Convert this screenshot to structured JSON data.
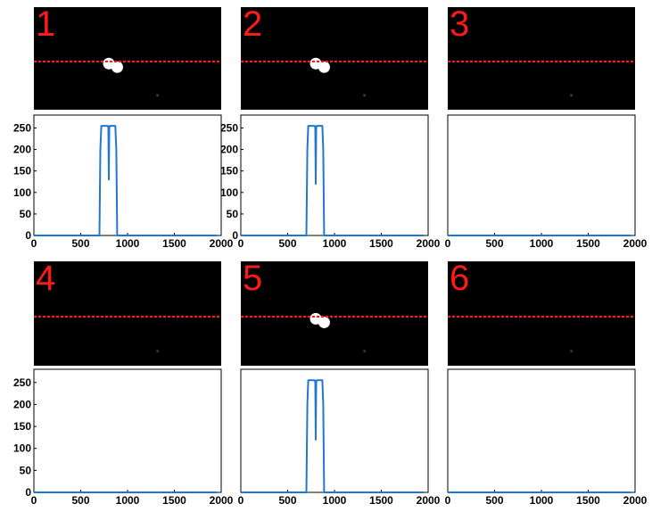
{
  "colors": {
    "camera_background": "#000000",
    "scanline": "#ff1a1a",
    "panel_number": "#ff1a1a",
    "trace": "#1f77d4",
    "axes": "#000000"
  },
  "panels": [
    {
      "number": "1",
      "has_spheres": true
    },
    {
      "number": "2",
      "has_spheres": true
    },
    {
      "number": "3",
      "has_spheres": false
    },
    {
      "number": "4",
      "has_spheres": false
    },
    {
      "number": "5",
      "has_spheres": true
    },
    {
      "number": "6",
      "has_spheres": false
    }
  ],
  "chart_data": [
    {
      "type": "line",
      "title": "",
      "xlabel": "",
      "ylabel": "",
      "xlim": [
        0,
        2000
      ],
      "ylim": [
        0,
        280
      ],
      "xticks": [
        0,
        500,
        1000,
        1500,
        2000
      ],
      "yticks": [
        0,
        50,
        100,
        150,
        200,
        250
      ],
      "grid": false,
      "x": [
        0,
        700,
        710,
        720,
        790,
        795,
        800,
        805,
        810,
        870,
        880,
        890,
        1950
      ],
      "y": [
        0,
        0,
        200,
        255,
        255,
        250,
        130,
        250,
        255,
        255,
        200,
        0,
        0
      ]
    },
    {
      "type": "line",
      "title": "",
      "xlabel": "",
      "ylabel": "",
      "xlim": [
        0,
        2000
      ],
      "ylim": [
        0,
        280
      ],
      "xticks": [
        0,
        500,
        1000,
        1500,
        2000
      ],
      "yticks": [
        0,
        50,
        100,
        150,
        200,
        250
      ],
      "grid": false,
      "x": [
        0,
        700,
        710,
        720,
        790,
        795,
        800,
        805,
        810,
        870,
        880,
        890,
        1950
      ],
      "y": [
        0,
        0,
        200,
        255,
        255,
        250,
        120,
        250,
        255,
        255,
        200,
        0,
        0
      ]
    },
    {
      "type": "line",
      "title": "",
      "xlabel": "",
      "ylabel": "",
      "xlim": [
        0,
        2000
      ],
      "ylim": [
        0,
        280
      ],
      "xticks": [
        0,
        500,
        1000,
        1500,
        2000
      ],
      "yticks": [],
      "grid": false,
      "x": [
        0,
        1950
      ],
      "y": [
        0,
        0
      ]
    },
    {
      "type": "line",
      "title": "",
      "xlabel": "",
      "ylabel": "",
      "xlim": [
        0,
        2000
      ],
      "ylim": [
        0,
        280
      ],
      "xticks": [
        0,
        500,
        1000,
        1500,
        2000
      ],
      "yticks": [
        0,
        50,
        100,
        150,
        200,
        250
      ],
      "grid": false,
      "x": [
        0,
        1950
      ],
      "y": [
        0,
        0
      ]
    },
    {
      "type": "line",
      "title": "",
      "xlabel": "",
      "ylabel": "",
      "xlim": [
        0,
        2000
      ],
      "ylim": [
        0,
        280
      ],
      "xticks": [
        0,
        500,
        1000,
        1500,
        2000
      ],
      "yticks": [],
      "grid": false,
      "x": [
        0,
        700,
        710,
        720,
        790,
        795,
        800,
        805,
        810,
        870,
        880,
        890,
        1950
      ],
      "y": [
        0,
        0,
        200,
        255,
        255,
        250,
        120,
        250,
        255,
        255,
        200,
        0,
        0
      ]
    },
    {
      "type": "line",
      "title": "",
      "xlabel": "",
      "ylabel": "",
      "xlim": [
        0,
        2000
      ],
      "ylim": [
        0,
        280
      ],
      "xticks": [
        0,
        500,
        1000,
        1500,
        2000
      ],
      "yticks": [],
      "grid": false,
      "x": [
        0,
        1950
      ],
      "y": [
        0,
        0
      ]
    }
  ]
}
